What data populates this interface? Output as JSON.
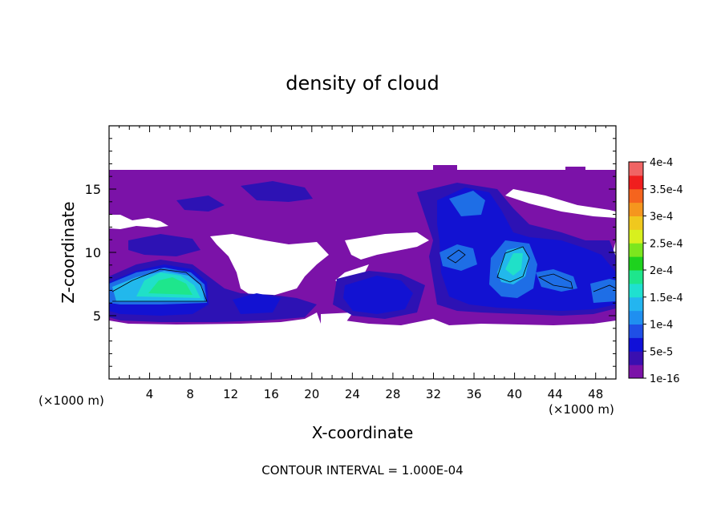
{
  "chart_data": {
    "type": "heatmap",
    "title": "density of cloud",
    "xlabel": "X-coordinate",
    "ylabel": "Z-coordinate",
    "x_unit_left": "(×1000 m)",
    "x_unit_right": "(×1000 m)",
    "footer": "CONTOUR INTERVAL = 1.000E-04",
    "xlim": [
      0,
      50
    ],
    "ylim": [
      0,
      20
    ],
    "xticks": [
      4,
      8,
      12,
      16,
      20,
      24,
      28,
      32,
      36,
      40,
      44,
      48
    ],
    "xtick_labels": [
      "4",
      "8",
      "12",
      "16",
      "20",
      "24",
      "28",
      "32",
      "36",
      "40",
      "44",
      "48"
    ],
    "yticks": [
      5,
      10,
      15
    ],
    "ytick_labels": [
      "5",
      "10",
      "15"
    ],
    "colorbar": {
      "labels": [
        "1e-16",
        "5e-5",
        "1e-4",
        "1.5e-4",
        "2e-4",
        "2.5e-4",
        "3e-4",
        "3.5e-4",
        "4e-4"
      ],
      "colors": [
        "#7b12a8",
        "#3a0fb0",
        "#1010d8",
        "#1f4fe6",
        "#1f8ff0",
        "#23b5f0",
        "#1fe0d0",
        "#1ee68c",
        "#1ed21e",
        "#7ce61e",
        "#d8f01e",
        "#f0c81e",
        "#f5961e",
        "#f5641e",
        "#f01e1e",
        "#f06464"
      ]
    },
    "colors": {
      "background_cloud": "#7b12a8",
      "dark_blue": "#2d12b4",
      "blue": "#1212d2",
      "light_blue": "#1e6ee6",
      "cyan": "#22b8ec",
      "teal": "#20e0c8",
      "green": "#1ee68c"
    }
  }
}
